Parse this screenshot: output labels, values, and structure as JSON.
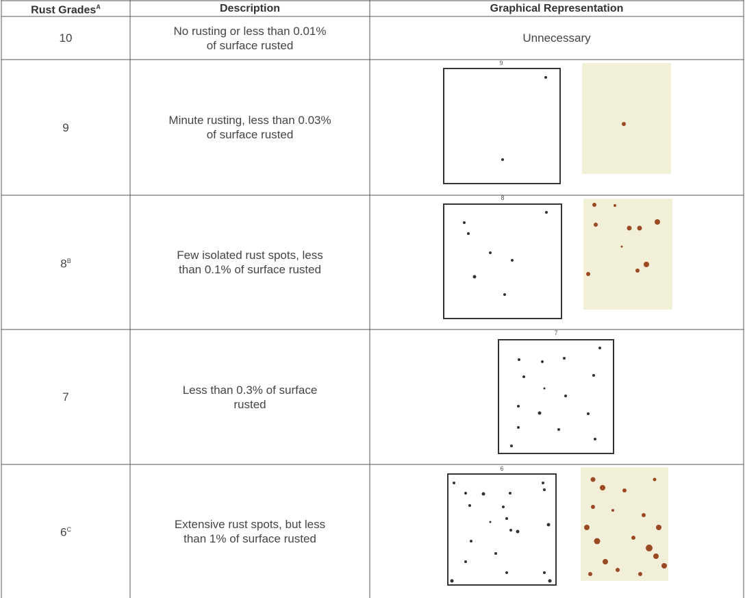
{
  "table": {
    "header": [
      {
        "text": "Rust Grades",
        "note": "A"
      },
      "Description",
      "Graphical Representation"
    ],
    "rows": [
      {
        "grade": "10",
        "description": [
          "No rusting or less than 0.01%",
          "of surface rusted"
        ],
        "graphic": "Unnecessary"
      },
      {
        "grade": "9",
        "description": [
          "Minute rusting, less than 0.03%",
          "of surface rusted"
        ],
        "figure_label": "9"
      },
      {
        "grade": "8",
        "note": "B",
        "description": [
          "Few isolated rust spots, less",
          "than 0.1% of surface rusted"
        ],
        "figure_label": "8"
      },
      {
        "grade": "7",
        "description": [
          "Less than 0.3% of surface",
          "rusted"
        ],
        "figure_label": "7"
      },
      {
        "grade": "6",
        "note": "C",
        "description": [
          "Extensive rust spots, but less",
          "than 1% of surface rusted"
        ],
        "figure_label": "6"
      }
    ]
  }
}
